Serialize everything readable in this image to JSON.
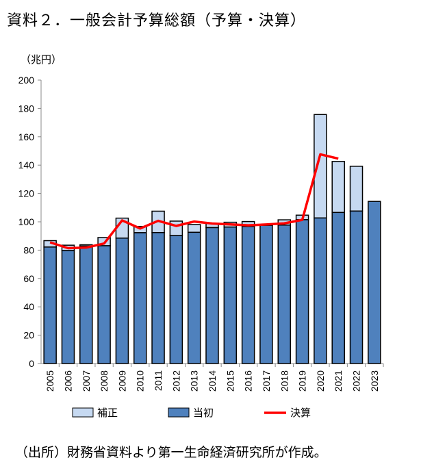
{
  "title": "資料２．一般会計予算総額（予算・決算）",
  "source": "（出所）財務省資料より第一生命経済研究所が作成。",
  "chart_data": {
    "type": "bar",
    "ylabel": "（兆円）",
    "ylim": [
      0,
      200
    ],
    "yticks": [
      0,
      20,
      40,
      60,
      80,
      100,
      120,
      140,
      160,
      180,
      200
    ],
    "categories": [
      "2005",
      "2006",
      "2007",
      "2008",
      "2009",
      "2010",
      "2011",
      "2012",
      "2013",
      "2014",
      "2015",
      "2016",
      "2017",
      "2018",
      "2019",
      "2020",
      "2021",
      "2022",
      "2023"
    ],
    "series": [
      {
        "name": "当初",
        "type": "bar",
        "color": "#4f81bd",
        "values": [
          82.2,
          79.7,
          82.9,
          83.1,
          88.5,
          92.3,
          92.4,
          90.3,
          92.6,
          95.9,
          96.3,
          96.7,
          97.5,
          97.7,
          101.5,
          102.7,
          106.6,
          107.6,
          114.4
        ]
      },
      {
        "name": "補正",
        "type": "bar",
        "color": "#c6d9f1",
        "values": [
          4.5,
          3.8,
          0.9,
          5.8,
          14.1,
          4.4,
          15.1,
          10.2,
          5.5,
          2.9,
          3.4,
          3.5,
          0.6,
          3.7,
          3.2,
          73.0,
          36.0,
          31.6,
          0
        ]
      },
      {
        "name": "決算",
        "type": "line",
        "color": "#ff0000",
        "values": [
          85.5,
          81.4,
          81.8,
          84.7,
          101.0,
          95.3,
          100.7,
          97.1,
          100.2,
          98.8,
          98.2,
          97.5,
          98.1,
          98.9,
          101.4,
          147.6,
          144.6,
          null,
          null
        ]
      }
    ],
    "legend": [
      "補正",
      "当初",
      "決算"
    ],
    "legend_position": "bottom"
  }
}
